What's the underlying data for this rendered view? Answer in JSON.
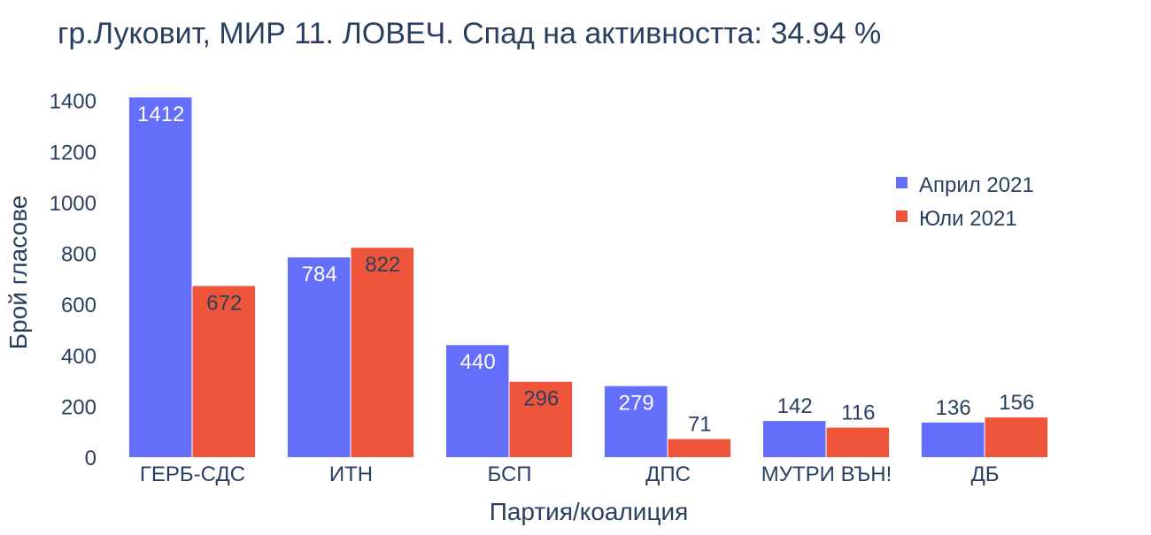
{
  "chart_data": {
    "type": "bar",
    "title": "гр.Луковит, МИР 11. ЛОВЕЧ. Спад на активността: 34.94 %",
    "xlabel": "Партия/коалиция",
    "ylabel": "Брой гласове",
    "ylim": [
      0,
      1430
    ],
    "yticks": [
      0,
      200,
      400,
      600,
      800,
      1000,
      1200,
      1400
    ],
    "grid": false,
    "legend_position": "top-right",
    "categories": [
      "ГЕРБ-СДС",
      "ИТН",
      "БСП",
      "ДПС",
      "МУТРИ ВЪН!",
      "ДБ"
    ],
    "series": [
      {
        "name": "Април 2021",
        "color": "#636efa",
        "values": [
          1412,
          784,
          440,
          279,
          142,
          136
        ]
      },
      {
        "name": "Юли 2021",
        "color": "#ef553b",
        "values": [
          672,
          822,
          296,
          71,
          116,
          156
        ]
      }
    ]
  }
}
